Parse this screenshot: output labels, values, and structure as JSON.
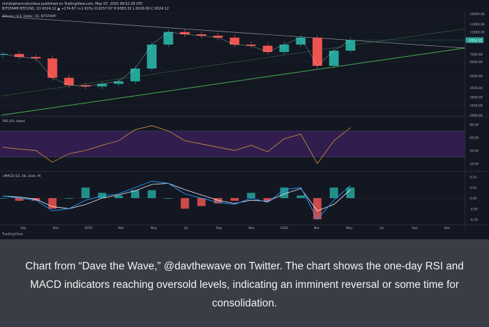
{
  "header": {
    "line1": "christopherccolumbus published on TradingView.com, May 07, 2020 09:52:28 UTC",
    "line2": "BITSTAMP:BTCUSD, 1D  9324.12  ▲ +174.67 (+1.91%)  O:9157.97  H:9383.32  L:9100.00  C:9324.12",
    "chart_title": "Bitcoin / U.S. Dollar, 1D, BITSTAMP"
  },
  "rsi_label": "RSI (14, close)",
  "macd_label": "LMACD (12, 26, close, 9)",
  "watermark": "TradingView",
  "caption": "Chart from “Dave the Wave,” @davthewave on Twitter. The chart shows the one-day RSI and MACD indicators reaching oversold levels, indicating an imminent reversal or some time for consolidation.",
  "colors": {
    "background": "#131722",
    "up": "#26a69a",
    "down": "#ef5350",
    "rsi_line": "#c08a3a",
    "rsi_band": "#3a1f5a",
    "macd_line": "#2196f3",
    "signal_line": "#f5f5f5",
    "trend_green": "#4caf50",
    "caption_bg": "#3a3d45"
  },
  "chart_data": [
    {
      "type": "line",
      "name": "price",
      "x_labels": [
        "Sep",
        "Nov",
        "2019",
        "Mar",
        "May",
        "Jul",
        "Sep",
        "Nov",
        "2020",
        "Mar",
        "May",
        "Jul",
        "Sep",
        "Nov"
      ],
      "yaxis_scale": "log",
      "y_ticks": [
        "16000.00",
        "13000.00",
        "11000.00",
        "9000.00",
        "7000.00",
        "6000.00",
        "4500.00",
        "3500.00",
        "2900.00",
        "2450.00",
        "2000.00"
      ],
      "last_price": "9324.12",
      "x": [
        "2018-08",
        "2018-09",
        "2018-10",
        "2018-11",
        "2018-12",
        "2019-01",
        "2019-02",
        "2019-03",
        "2019-04",
        "2019-05",
        "2019-06",
        "2019-07",
        "2019-08",
        "2019-09",
        "2019-10",
        "2019-11",
        "2019-12",
        "2020-01",
        "2020-02",
        "2020-03",
        "2020-04",
        "2020-05"
      ],
      "values": [
        7000,
        6600,
        6400,
        4300,
        3700,
        3600,
        3800,
        4000,
        5200,
        8500,
        11000,
        10500,
        10200,
        9800,
        8500,
        8300,
        7300,
        8500,
        9800,
        5500,
        7500,
        9324
      ]
    },
    {
      "type": "line",
      "name": "RSI",
      "y_ticks": [
        "80.00",
        "60.00",
        "40.00",
        "20.00"
      ],
      "band": [
        30,
        70
      ],
      "values": [
        45,
        42,
        40,
        22,
        35,
        40,
        48,
        55,
        72,
        78,
        70,
        55,
        50,
        45,
        40,
        48,
        38,
        58,
        65,
        20,
        55,
        75
      ]
    },
    {
      "type": "line",
      "name": "MACD",
      "y_ticks": [
        "0.10",
        "0.05",
        "0.00",
        "-0.05",
        "-0.10"
      ],
      "macd": [
        0.01,
        0.0,
        -0.01,
        -0.06,
        -0.05,
        -0.01,
        0.01,
        0.02,
        0.05,
        0.08,
        0.07,
        0.02,
        0.0,
        -0.02,
        -0.03,
        0.0,
        -0.02,
        0.04,
        0.05,
        -0.1,
        -0.01,
        0.06
      ],
      "signal": [
        0.01,
        0.005,
        -0.005,
        -0.04,
        -0.05,
        -0.03,
        0.0,
        0.015,
        0.035,
        0.065,
        0.07,
        0.04,
        0.015,
        -0.01,
        -0.025,
        -0.01,
        -0.015,
        0.02,
        0.045,
        -0.06,
        -0.03,
        0.04
      ]
    }
  ]
}
